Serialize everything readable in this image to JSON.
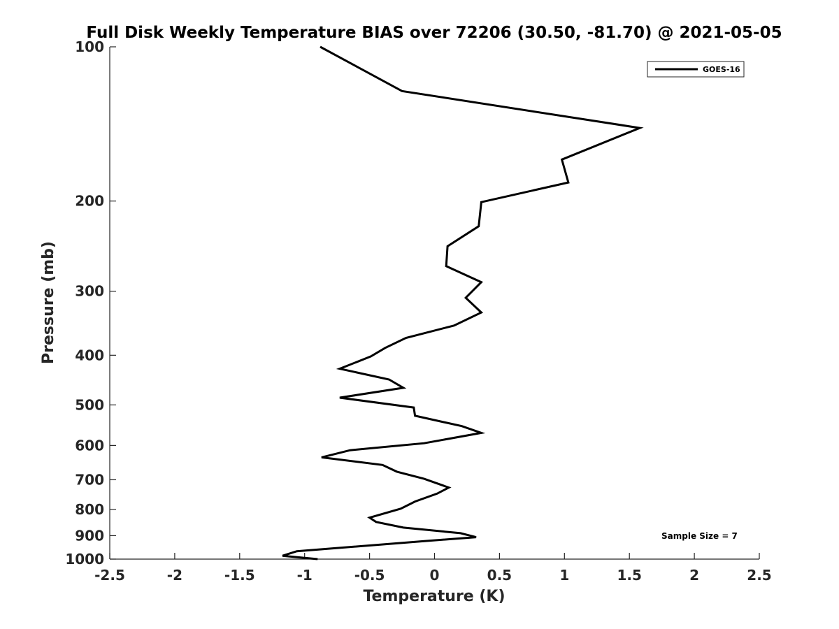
{
  "chart_data": {
    "type": "line",
    "title": "Full Disk Weekly Temperature BIAS over 72206 (30.50, -81.70) @ 2021-05-05",
    "xlabel": "Temperature (K)",
    "ylabel": "Pressure (mb)",
    "xlim": [
      -2.5,
      2.5
    ],
    "ylim": [
      100,
      1000
    ],
    "y_scale": "log",
    "y_reversed": true,
    "x_ticks": [
      "-2.5",
      "-2",
      "-1.5",
      "-1",
      "-0.5",
      "0",
      "0.5",
      "1",
      "1.5",
      "2",
      "2.5"
    ],
    "y_ticks": [
      "100",
      "200",
      "300",
      "400",
      "500",
      "600",
      "700",
      "800",
      "900",
      "1000"
    ],
    "grid": false,
    "legend_position": "top-right",
    "series": [
      {
        "name": "GOES-16",
        "color": "#000000",
        "points": [
          {
            "x": -0.88,
            "y": 100
          },
          {
            "x": -0.25,
            "y": 122
          },
          {
            "x": 1.58,
            "y": 144
          },
          {
            "x": 0.98,
            "y": 166
          },
          {
            "x": 1.03,
            "y": 184
          },
          {
            "x": 0.36,
            "y": 201
          },
          {
            "x": 0.34,
            "y": 224
          },
          {
            "x": 0.1,
            "y": 245
          },
          {
            "x": 0.09,
            "y": 268
          },
          {
            "x": 0.36,
            "y": 288
          },
          {
            "x": 0.24,
            "y": 309
          },
          {
            "x": 0.36,
            "y": 330
          },
          {
            "x": 0.15,
            "y": 350
          },
          {
            "x": -0.22,
            "y": 370
          },
          {
            "x": -0.38,
            "y": 387
          },
          {
            "x": -0.49,
            "y": 402
          },
          {
            "x": -0.73,
            "y": 425
          },
          {
            "x": -0.35,
            "y": 446
          },
          {
            "x": -0.24,
            "y": 463
          },
          {
            "x": -0.73,
            "y": 484
          },
          {
            "x": -0.16,
            "y": 506
          },
          {
            "x": -0.15,
            "y": 525
          },
          {
            "x": 0.21,
            "y": 550
          },
          {
            "x": 0.36,
            "y": 567
          },
          {
            "x": -0.08,
            "y": 594
          },
          {
            "x": -0.65,
            "y": 613
          },
          {
            "x": -0.87,
            "y": 633
          },
          {
            "x": -0.4,
            "y": 655
          },
          {
            "x": -0.29,
            "y": 675
          },
          {
            "x": -0.08,
            "y": 697
          },
          {
            "x": 0.11,
            "y": 725
          },
          {
            "x": 0.02,
            "y": 745
          },
          {
            "x": -0.15,
            "y": 772
          },
          {
            "x": -0.26,
            "y": 797
          },
          {
            "x": -0.5,
            "y": 830
          },
          {
            "x": -0.45,
            "y": 846
          },
          {
            "x": -0.24,
            "y": 868
          },
          {
            "x": 0.2,
            "y": 890
          },
          {
            "x": 0.32,
            "y": 906
          },
          {
            "x": -0.07,
            "y": 922
          },
          {
            "x": -1.06,
            "y": 965
          },
          {
            "x": -1.17,
            "y": 985
          },
          {
            "x": -0.9,
            "y": 1000
          }
        ]
      }
    ],
    "annotations": [
      "Sample Size = 7"
    ]
  }
}
